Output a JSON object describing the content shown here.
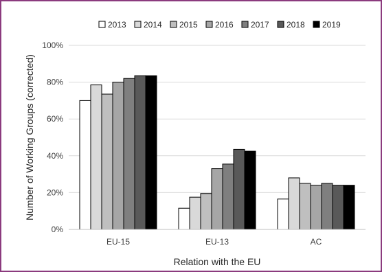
{
  "chart_data": {
    "type": "bar",
    "categories": [
      "EU-15",
      "EU-13",
      "AC"
    ],
    "series": [
      {
        "name": "2013",
        "values": [
          70,
          11.5,
          16.5
        ],
        "color": "#ffffff"
      },
      {
        "name": "2014",
        "values": [
          78.5,
          17.5,
          28
        ],
        "color": "#d9d9d9"
      },
      {
        "name": "2015",
        "values": [
          73.5,
          19.5,
          25
        ],
        "color": "#bfbfbf"
      },
      {
        "name": "2016",
        "values": [
          80,
          33,
          24
        ],
        "color": "#a6a6a6"
      },
      {
        "name": "2017",
        "values": [
          82,
          35.5,
          25
        ],
        "color": "#7f7f7f"
      },
      {
        "name": "2018",
        "values": [
          83.5,
          43.5,
          24
        ],
        "color": "#595959"
      },
      {
        "name": "2019",
        "values": [
          83.5,
          42.5,
          24
        ],
        "color": "#000000"
      }
    ],
    "xlabel": "Relation with the EU",
    "ylabel": "Number of Working Groups (corrected)",
    "ylim": [
      0,
      100
    ],
    "yticks": [
      "0%",
      "20%",
      "40%",
      "60%",
      "80%",
      "100%"
    ],
    "ytick_values": [
      0,
      20,
      40,
      60,
      80,
      100
    ],
    "grid": true,
    "legend_position": "top"
  }
}
